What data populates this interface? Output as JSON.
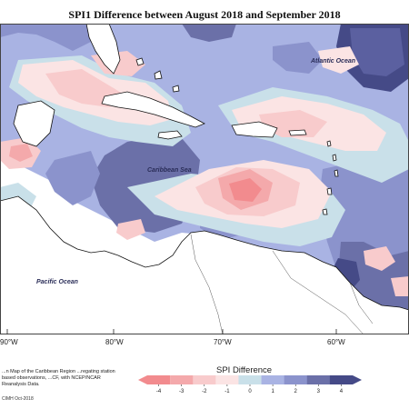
{
  "title": "SPI1 Difference between August 2018 and September 2018",
  "map": {
    "labels": {
      "atlantic": "Atlantic Ocean",
      "caribbean": "Caribbean Sea",
      "pacific": "Pacific Ocean"
    },
    "longitude_ticks": [
      "90°W",
      "80°W",
      "70°W",
      "60°W"
    ],
    "colors": {
      "ocean_background": "#ffffff",
      "land": "#ffffff",
      "coastline": "#111111"
    }
  },
  "legend": {
    "title": "SPI Difference",
    "ticks": [
      "-4",
      "-3",
      "-2",
      "-1",
      "0",
      "1",
      "2",
      "3",
      "4"
    ],
    "colors": [
      "#f28b8e",
      "#f4a9ab",
      "#f8cbcc",
      "#fbe4e4",
      "#c9e0e9",
      "#a9b3e3",
      "#8b93cc",
      "#6b70a8",
      "#454a87"
    ]
  },
  "footnote": {
    "text": "...n Map of the Caribbean Region ...regating station based observations, ...CF, with NCEP/NCAR Reanalysis Data.",
    "credit": "CIMH Oct-2018"
  }
}
